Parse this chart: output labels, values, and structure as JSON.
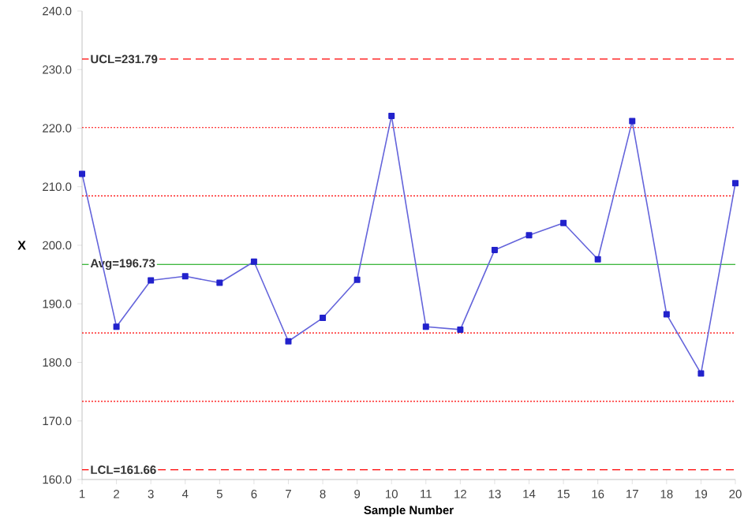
{
  "chart_data": {
    "type": "line",
    "xlabel": "Sample Number",
    "ylabel": "X",
    "x": [
      1,
      2,
      3,
      4,
      5,
      6,
      7,
      8,
      9,
      10,
      11,
      12,
      13,
      14,
      15,
      16,
      17,
      18,
      19,
      20
    ],
    "series": [
      {
        "color": "#2222cc",
        "values": [
          212.2,
          186.1,
          194.0,
          194.7,
          193.6,
          197.2,
          183.6,
          187.6,
          194.1,
          222.1,
          186.1,
          185.6,
          199.2,
          201.7,
          203.8,
          197.6,
          221.2,
          188.2,
          178.1,
          210.6
        ]
      }
    ],
    "marker": "square",
    "line_style": "solid",
    "grid": false,
    "xlim": [
      1,
      20
    ],
    "xticks": [
      1,
      2,
      3,
      4,
      5,
      6,
      7,
      8,
      9,
      10,
      11,
      12,
      13,
      14,
      15,
      16,
      17,
      18,
      19,
      20
    ],
    "ylim": [
      160,
      240
    ],
    "yticks": [
      {
        "value": 160,
        "label": "160.0"
      },
      {
        "value": 170,
        "label": "170.0"
      },
      {
        "value": 180,
        "label": "180.0"
      },
      {
        "value": 190,
        "label": "190.0"
      },
      {
        "value": 200,
        "label": "200.0"
      },
      {
        "value": 210,
        "label": "210.0"
      },
      {
        "value": 220,
        "label": "220.0"
      },
      {
        "value": 230,
        "label": "230.0"
      },
      {
        "value": 240,
        "label": "240.0"
      }
    ],
    "ref_lines": [
      {
        "axis": "y",
        "value": 231.79,
        "label": "UCL=231.79",
        "color": "#ff0000",
        "line_style": "dashed"
      },
      {
        "axis": "y",
        "value": 220.1,
        "label": null,
        "color": "#ff0000",
        "line_style": "dotted"
      },
      {
        "axis": "y",
        "value": 208.42,
        "label": null,
        "color": "#ff0000",
        "line_style": "dotted"
      },
      {
        "axis": "y",
        "value": 196.73,
        "label": "Avg=196.73",
        "color": "#00a000",
        "line_style": "solid"
      },
      {
        "axis": "y",
        "value": 185.04,
        "label": null,
        "color": "#ff0000",
        "line_style": "dotted"
      },
      {
        "axis": "y",
        "value": 173.35,
        "label": null,
        "color": "#ff0000",
        "line_style": "dotted"
      },
      {
        "axis": "y",
        "value": 161.66,
        "label": "LCL=161.66",
        "color": "#ff0000",
        "line_style": "dashed"
      }
    ]
  }
}
